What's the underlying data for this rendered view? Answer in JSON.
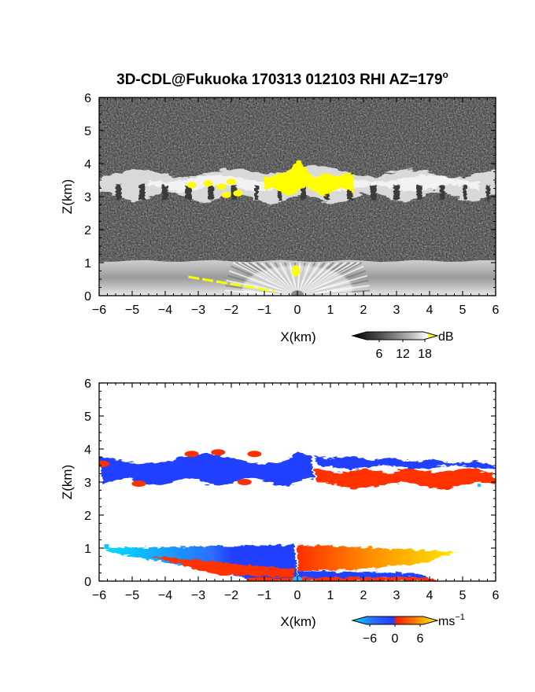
{
  "title": "3D-CDL@Fukuoka 170313 012103 RHI AZ=179",
  "title_sup": "o",
  "colors": {
    "frame": "#000000",
    "echo_yellow": "#ffff00",
    "vel_blue": "#2040ff",
    "vel_cyan": "#20c0ff",
    "vel_red": "#ff3000",
    "vel_orange": "#ff8000",
    "vel_yellow": "#ffe800",
    "background_noise": "#2a2a2a"
  },
  "chart_data": [
    {
      "type": "heatmap",
      "name": "reflectivity-panel",
      "xlabel": "X(km)",
      "ylabel": "Z(km)",
      "xlim": [
        -6,
        6
      ],
      "ylim": [
        0,
        6
      ],
      "xticks": [
        "−6",
        "−5",
        "−4",
        "−3",
        "−2",
        "−1",
        "0",
        "1",
        "2",
        "3",
        "4",
        "5",
        "6"
      ],
      "yticks": [
        "0",
        "1",
        "2",
        "3",
        "4",
        "5",
        "6"
      ],
      "colorbar": {
        "unit": "dB",
        "ticks": [
          "6",
          "12",
          "18"
        ],
        "colormap": [
          "#000000",
          "#444444",
          "#888888",
          "#bbbbbb",
          "#ffffff",
          "#ffff00"
        ]
      },
      "features": [
        {
          "kind": "cloud-layer",
          "x": [
            -6,
            6
          ],
          "z_bottom": 3.0,
          "z_top": 3.7
        },
        {
          "kind": "strong-echo-yellow",
          "x": [
            -1.0,
            1.7
          ],
          "z_bottom": 3.1,
          "z_top": 4.1
        },
        {
          "kind": "boundary-layer",
          "x": [
            -6,
            6
          ],
          "z_bottom": 0.0,
          "z_top": 1.05
        },
        {
          "kind": "strong-echo-yellow-near-ground",
          "x": [
            -3.3,
            -1.2
          ],
          "z_bottom": 0.0,
          "z_top": 0.5
        }
      ]
    },
    {
      "type": "heatmap",
      "name": "doppler-velocity-panel",
      "xlabel": "X(km)",
      "ylabel": "Z(km)",
      "xlim": [
        -6,
        6
      ],
      "ylim": [
        0,
        6
      ],
      "xticks": [
        "−6",
        "−5",
        "−4",
        "−3",
        "−2",
        "−1",
        "0",
        "1",
        "2",
        "3",
        "4",
        "5",
        "6"
      ],
      "yticks": [
        "0",
        "1",
        "2",
        "3",
        "4",
        "5",
        "6"
      ],
      "colorbar": {
        "unit": "ms",
        "unit_sup": "−1",
        "ticks": [
          "−6",
          "0",
          "6"
        ],
        "range": [
          -6,
          6
        ],
        "colormap": [
          "#00e0ff",
          "#2040ff",
          "#ff2000",
          "#ff8000",
          "#ffff00"
        ]
      },
      "features": [
        {
          "kind": "cloud-layer-approaching",
          "x": [
            -6,
            0.5
          ],
          "z_bottom": 2.9,
          "z_top": 3.9,
          "velocity": -3
        },
        {
          "kind": "cloud-layer-receding",
          "x": [
            0.5,
            6
          ],
          "z_bottom": 2.9,
          "z_top": 3.7,
          "velocity": 3
        },
        {
          "kind": "boundary-layer-negative",
          "x": [
            -5.8,
            0
          ],
          "z_bottom": 0.0,
          "z_top": 1.05,
          "velocity": -5
        },
        {
          "kind": "boundary-layer-positive",
          "x": [
            0,
            4.8
          ],
          "z_bottom": 0.0,
          "z_top": 1.1,
          "velocity": 5
        }
      ]
    }
  ]
}
